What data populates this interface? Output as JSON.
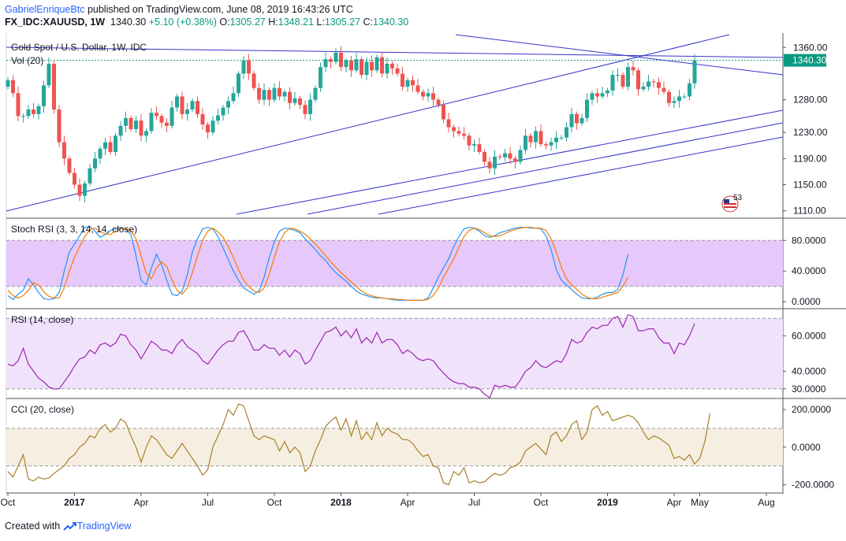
{
  "header": {
    "author": "GabrielEnriqueBtc",
    "published": "published on TradingView.com, June 08, 2019 16:43:26 UTC",
    "symbol": "FX_IDC:XAUUSD, 1W",
    "last": "1340.30",
    "change": "+5.10 (+0.38%)",
    "o_label": "O:",
    "o": "1305.27",
    "h_label": "H:",
    "h": "1348.21",
    "l_label": "L:",
    "l": "1305.27",
    "c_label": "C:",
    "c": "1340.30"
  },
  "footer": {
    "created_with": "Created with",
    "brand": "TradingView"
  },
  "colors": {
    "up": "#26a69a",
    "down": "#ef5350",
    "trendline": "#3535c8",
    "price_line": "#089981",
    "stoch_k": "#2196f3",
    "stoch_d": "#f57c00",
    "rsi": "#9c27b0",
    "cci": "#a9802b",
    "stoch_band": "#e6c8fa",
    "rsi_band": "#f1e2fb",
    "cci_band": "#f6eee0"
  },
  "chart_data": [
    {
      "type": "candlestick",
      "title": "Gold Spot / U.S. Dollar, 1W, IDC",
      "subtitle": "Vol (20)",
      "ylim": [
        1100,
        1382
      ],
      "yticks": [
        1110,
        1150,
        1190,
        1230,
        1280,
        1360
      ],
      "ytick_labels": [
        "1110.00",
        "1150.00",
        "1190.00",
        "1230.00",
        "1280.00",
        "1360.00"
      ],
      "last_price": 1340.3,
      "last_price_label": "1340.30",
      "x_labels": [
        "Oct",
        "2017",
        "Apr",
        "Jul",
        "Oct",
        "2018",
        "Apr",
        "Jul",
        "Oct",
        "2019",
        "Apr",
        "May",
        "Aug"
      ],
      "x_label_weeks": [
        0,
        13,
        26,
        39,
        52,
        65,
        78,
        91,
        104,
        117,
        130,
        135,
        148
      ],
      "closes": [
        1310,
        1290,
        1255,
        1255,
        1265,
        1258,
        1270,
        1302,
        1335,
        1265,
        1215,
        1190,
        1168,
        1150,
        1133,
        1152,
        1175,
        1190,
        1205,
        1215,
        1200,
        1225,
        1240,
        1252,
        1235,
        1248,
        1225,
        1232,
        1260,
        1255,
        1245,
        1240,
        1268,
        1285,
        1258,
        1265,
        1278,
        1258,
        1242,
        1230,
        1248,
        1256,
        1268,
        1278,
        1290,
        1320,
        1340,
        1320,
        1298,
        1280,
        1295,
        1280,
        1298,
        1285,
        1292,
        1275,
        1282,
        1272,
        1258,
        1280,
        1298,
        1330,
        1342,
        1338,
        1352,
        1330,
        1340,
        1325,
        1342,
        1318,
        1338,
        1325,
        1345,
        1320,
        1335,
        1328,
        1320,
        1300,
        1310,
        1302,
        1292,
        1285,
        1290,
        1280,
        1272,
        1250,
        1238,
        1232,
        1228,
        1225,
        1210,
        1212,
        1200,
        1185,
        1175,
        1193,
        1192,
        1198,
        1190,
        1185,
        1203,
        1225,
        1215,
        1232,
        1212,
        1210,
        1215,
        1222,
        1222,
        1238,
        1258,
        1244,
        1252,
        1280,
        1290,
        1285,
        1290,
        1294,
        1318,
        1318,
        1300,
        1330,
        1325,
        1296,
        1300,
        1308,
        1307,
        1298,
        1292,
        1275,
        1278,
        1285,
        1285,
        1305,
        1340
      ],
      "vol_label": "53"
    },
    {
      "type": "line",
      "title": "Stoch RSI (3, 3, 14, 14, close)",
      "ylim": [
        -8,
        108
      ],
      "yticks": [
        0,
        40,
        80
      ],
      "ytick_labels": [
        "0.0000",
        "40.0000",
        "80.0000"
      ],
      "bands": [
        20,
        80
      ],
      "series": [
        {
          "values": [
            8,
            3,
            10,
            15,
            30,
            22,
            12,
            4,
            3,
            4,
            12,
            40,
            65,
            75,
            86,
            97,
            98,
            92,
            84,
            88,
            93,
            95,
            97,
            94,
            88,
            60,
            28,
            22,
            44,
            62,
            48,
            28,
            10,
            8,
            14,
            35,
            65,
            82,
            95,
            97,
            95,
            85,
            70,
            55,
            40,
            28,
            18,
            14,
            10,
            14,
            32,
            58,
            78,
            92,
            96,
            95,
            93,
            90,
            82,
            75,
            68,
            60,
            54,
            45,
            38,
            32,
            27,
            20,
            14,
            10,
            8,
            6,
            5,
            5,
            4,
            3,
            2,
            2,
            2,
            2,
            2,
            2,
            5,
            18,
            32,
            44,
            56,
            72,
            85,
            95,
            97,
            96,
            92,
            86,
            84,
            86,
            90,
            92,
            94,
            96,
            97,
            97,
            96,
            96,
            95,
            86,
            68,
            42,
            28,
            22,
            16,
            10,
            5,
            4,
            4,
            6,
            10,
            12,
            12,
            16,
            35,
            62
          ]
        },
        {
          "values": [
            15,
            8,
            5,
            8,
            15,
            25,
            22,
            13,
            7,
            5,
            5,
            18,
            40,
            58,
            72,
            85,
            94,
            96,
            92,
            88,
            88,
            92,
            95,
            95,
            93,
            82,
            60,
            37,
            30,
            44,
            52,
            46,
            29,
            15,
            10,
            18,
            38,
            60,
            80,
            92,
            96,
            91,
            84,
            72,
            58,
            42,
            28,
            20,
            14,
            12,
            18,
            36,
            58,
            78,
            90,
            96,
            95,
            92,
            88,
            82,
            75,
            68,
            60,
            52,
            45,
            38,
            32,
            26,
            20,
            14,
            10,
            8,
            6,
            5,
            4,
            4,
            3,
            3,
            2,
            2,
            2,
            2,
            3,
            8,
            18,
            32,
            44,
            56,
            71,
            85,
            93,
            96,
            94,
            90,
            86,
            85,
            86,
            89,
            92,
            94,
            96,
            97,
            97,
            96,
            96,
            93,
            82,
            65,
            45,
            30,
            22,
            16,
            10,
            6,
            4,
            4,
            6,
            8,
            10,
            12,
            20,
            32
          ]
        }
      ]
    },
    {
      "type": "line",
      "title": "RSI (14, close)",
      "ylim": [
        25,
        75
      ],
      "yticks": [
        30,
        40,
        60
      ],
      "ytick_labels": [
        "30.0000",
        "40.0000",
        "60.0000"
      ],
      "bands": [
        30,
        70
      ],
      "series": [
        {
          "values": [
            44,
            43,
            46,
            53,
            44,
            40,
            36,
            34,
            31,
            30,
            30,
            34,
            38,
            43,
            47,
            48,
            52,
            50,
            55,
            56,
            54,
            56,
            61,
            60,
            55,
            52,
            47,
            52,
            57,
            55,
            52,
            52,
            50,
            55,
            58,
            54,
            52,
            50,
            46,
            44,
            48,
            52,
            55,
            57,
            57,
            62,
            63,
            58,
            52,
            52,
            55,
            53,
            53,
            49,
            52,
            48,
            52,
            50,
            44,
            46,
            52,
            57,
            62,
            63,
            65,
            60,
            63,
            59,
            64,
            56,
            59,
            56,
            62,
            56,
            58,
            58,
            55,
            50,
            52,
            50,
            47,
            46,
            47,
            46,
            42,
            39,
            36,
            34,
            33,
            33,
            31,
            31,
            30,
            27,
            25,
            32,
            31,
            32,
            31,
            31,
            35,
            40,
            42,
            46,
            43,
            42,
            44,
            46,
            45,
            50,
            58,
            56,
            57,
            62,
            65,
            64,
            66,
            66,
            70,
            71,
            65,
            72,
            71,
            63,
            63,
            64,
            64,
            59,
            56,
            56,
            50,
            56,
            55,
            60,
            67
          ]
        }
      ]
    },
    {
      "type": "line",
      "title": "CCI (20, close)",
      "ylim": [
        -240,
        255
      ],
      "yticks": [
        -200,
        0,
        200
      ],
      "ytick_labels": [
        "-200.0000",
        "0.0000",
        "200.0000"
      ],
      "bands": [
        -100,
        100
      ],
      "series": [
        {
          "values": [
            -130,
            -160,
            -100,
            -40,
            -170,
            -180,
            -160,
            -170,
            -165,
            -140,
            -120,
            -100,
            -60,
            -40,
            0,
            20,
            60,
            50,
            100,
            120,
            80,
            100,
            150,
            130,
            60,
            0,
            -80,
            0,
            60,
            40,
            0,
            -40,
            -60,
            -20,
            20,
            -20,
            -60,
            -100,
            -150,
            -120,
            0,
            60,
            120,
            200,
            170,
            230,
            220,
            140,
            60,
            40,
            60,
            50,
            40,
            -20,
            30,
            -30,
            0,
            -30,
            -130,
            -100,
            -20,
            40,
            110,
            140,
            160,
            90,
            150,
            60,
            140,
            40,
            80,
            40,
            130,
            60,
            100,
            80,
            70,
            40,
            40,
            20,
            -20,
            -50,
            -40,
            -100,
            -110,
            -190,
            -200,
            -130,
            -150,
            -110,
            -190,
            -180,
            -190,
            -185,
            -160,
            -140,
            -150,
            -140,
            -110,
            -100,
            -80,
            -20,
            0,
            20,
            -10,
            -40,
            60,
            80,
            30,
            60,
            120,
            140,
            40,
            80,
            200,
            220,
            170,
            190,
            140,
            150,
            160,
            170,
            160,
            130,
            80,
            40,
            60,
            50,
            30,
            10,
            -60,
            -50,
            -70,
            -40,
            -90,
            -60,
            30,
            180
          ]
        }
      ]
    }
  ]
}
